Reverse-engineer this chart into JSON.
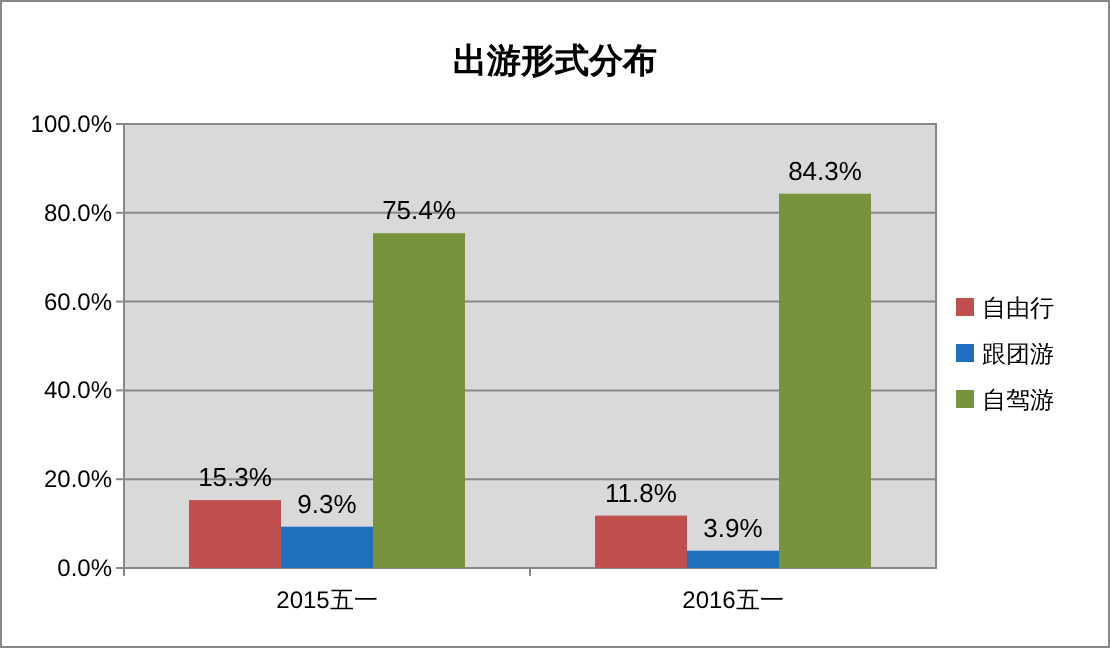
{
  "chart_data": {
    "type": "bar",
    "title": "出游形式分布",
    "categories": [
      "2015五一",
      "2016五一"
    ],
    "series": [
      {
        "name": "自由行",
        "color": "#c0504d",
        "values": [
          15.3,
          11.8
        ],
        "value_labels": [
          "15.3%",
          "11.8%"
        ]
      },
      {
        "name": "跟团游",
        "color": "#1f6fbf",
        "values": [
          9.3,
          3.9
        ],
        "value_labels": [
          "9.3%",
          "3.9%"
        ]
      },
      {
        "name": "自驾游",
        "color": "#77933c",
        "values": [
          75.4,
          84.3
        ],
        "value_labels": [
          "75.4%",
          "84.3%"
        ]
      }
    ],
    "ylim": [
      0,
      100
    ],
    "yticks": [
      {
        "value": 0,
        "label": "0.0%"
      },
      {
        "value": 20,
        "label": "20.0%"
      },
      {
        "value": 40,
        "label": "40.0%"
      },
      {
        "value": 60,
        "label": "60.0%"
      },
      {
        "value": 80,
        "label": "80.0%"
      },
      {
        "value": 100,
        "label": "100.0%"
      }
    ],
    "grid": "y",
    "legend": "right"
  }
}
